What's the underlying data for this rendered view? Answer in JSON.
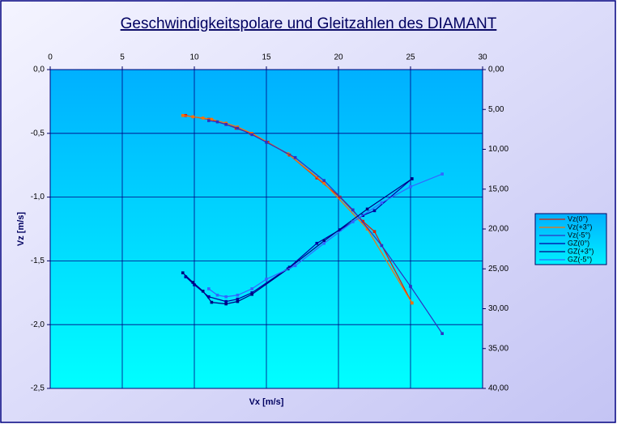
{
  "chart_data": {
    "type": "line",
    "title": "Geschwindigkeitspolare und Gleitzahlen des DIAMANT",
    "x_label": "Vx [m/s]",
    "y_label": "Vz [m/s]",
    "xlim": [
      0,
      30
    ],
    "xticks": [
      0,
      5,
      10,
      15,
      20,
      25,
      30
    ],
    "ylim": [
      -2.5,
      0
    ],
    "yticks": [
      {
        "value": 0,
        "label": "0,0"
      },
      {
        "value": -0.5,
        "label": "-0,5"
      },
      {
        "value": -1,
        "label": "-1,0"
      },
      {
        "value": -1.5,
        "label": "-1,5"
      },
      {
        "value": -2,
        "label": "-2,0"
      },
      {
        "value": -2.5,
        "label": "-2,5"
      }
    ],
    "y2lim": [
      40,
      0
    ],
    "y2ticks": [
      {
        "value": 0,
        "label": "0,00"
      },
      {
        "value": 5,
        "label": "5,00"
      },
      {
        "value": 10,
        "label": "10,00"
      },
      {
        "value": 15,
        "label": "15,00"
      },
      {
        "value": 20,
        "label": "20,00"
      },
      {
        "value": 25,
        "label": "25,00"
      },
      {
        "value": 30,
        "label": "30,00"
      },
      {
        "value": 35,
        "label": "35,00"
      },
      {
        "value": 40,
        "label": "40,00"
      }
    ],
    "grid": true,
    "legend": "right",
    "series": [
      {
        "name": "Vz(0°)",
        "color": "#e02000",
        "x": [
          9.4,
          9.9,
          11,
          12.2,
          12.9,
          13.9,
          15.1,
          16.6,
          18.5,
          20.1,
          21.7,
          22.5,
          25.1
        ],
        "values": [
          -0.36,
          -0.37,
          -0.39,
          -0.43,
          -0.46,
          -0.5,
          -0.57,
          -0.67,
          -0.85,
          -1.0,
          -1.19,
          -1.27,
          -1.83
        ]
      },
      {
        "name": "Vz(+3°)",
        "color": "#ff7000",
        "x": [
          9.2,
          9.9,
          10.6,
          11.2,
          12.2,
          13,
          14,
          16.5,
          19,
          22,
          25.1
        ],
        "values": [
          -0.36,
          -0.37,
          -0.38,
          -0.39,
          -0.42,
          -0.45,
          -0.5,
          -0.66,
          -0.89,
          -1.25,
          -1.83
        ]
      },
      {
        "name": "Vz(-5°)",
        "color": "#3030c0",
        "x": [
          11,
          11.6,
          12.2,
          13,
          14,
          15,
          17,
          19,
          21,
          23,
          25,
          27.2
        ],
        "values": [
          -0.4,
          -0.41,
          -0.43,
          -0.46,
          -0.51,
          -0.57,
          -0.69,
          -0.87,
          -1.1,
          -1.38,
          -1.7,
          -2.07
        ]
      },
      {
        "name": "GZ(0°)",
        "color": "#0000a0",
        "axis": "y2",
        "x": [
          9.4,
          10,
          11,
          12.2,
          13,
          14,
          16.6,
          18.5,
          20.1,
          21.7,
          22.5,
          25.1
        ],
        "values": [
          26,
          27,
          28.5,
          29.1,
          28.8,
          28,
          24.8,
          21.8,
          20.1,
          18.3,
          17.7,
          13.7
        ]
      },
      {
        "name": "GZ(+3°)",
        "color": "#000080",
        "axis": "y2",
        "x": [
          9.2,
          9.9,
          10.6,
          11.2,
          12.2,
          13,
          14,
          16.5,
          19,
          22,
          25.1
        ],
        "values": [
          25.5,
          26.7,
          27.8,
          29.2,
          29.4,
          29.1,
          28.2,
          25,
          21.5,
          17.5,
          13.7
        ]
      },
      {
        "name": "GZ(-5°)",
        "color": "#3366ff",
        "axis": "y2",
        "x": [
          11,
          11.6,
          12.2,
          13,
          14,
          15,
          17,
          19,
          21,
          23,
          25,
          27.2
        ],
        "values": [
          27.5,
          28.3,
          28.5,
          28.3,
          27.5,
          26.3,
          24.6,
          21.8,
          19.1,
          16.7,
          14.7,
          13.1
        ]
      }
    ]
  }
}
